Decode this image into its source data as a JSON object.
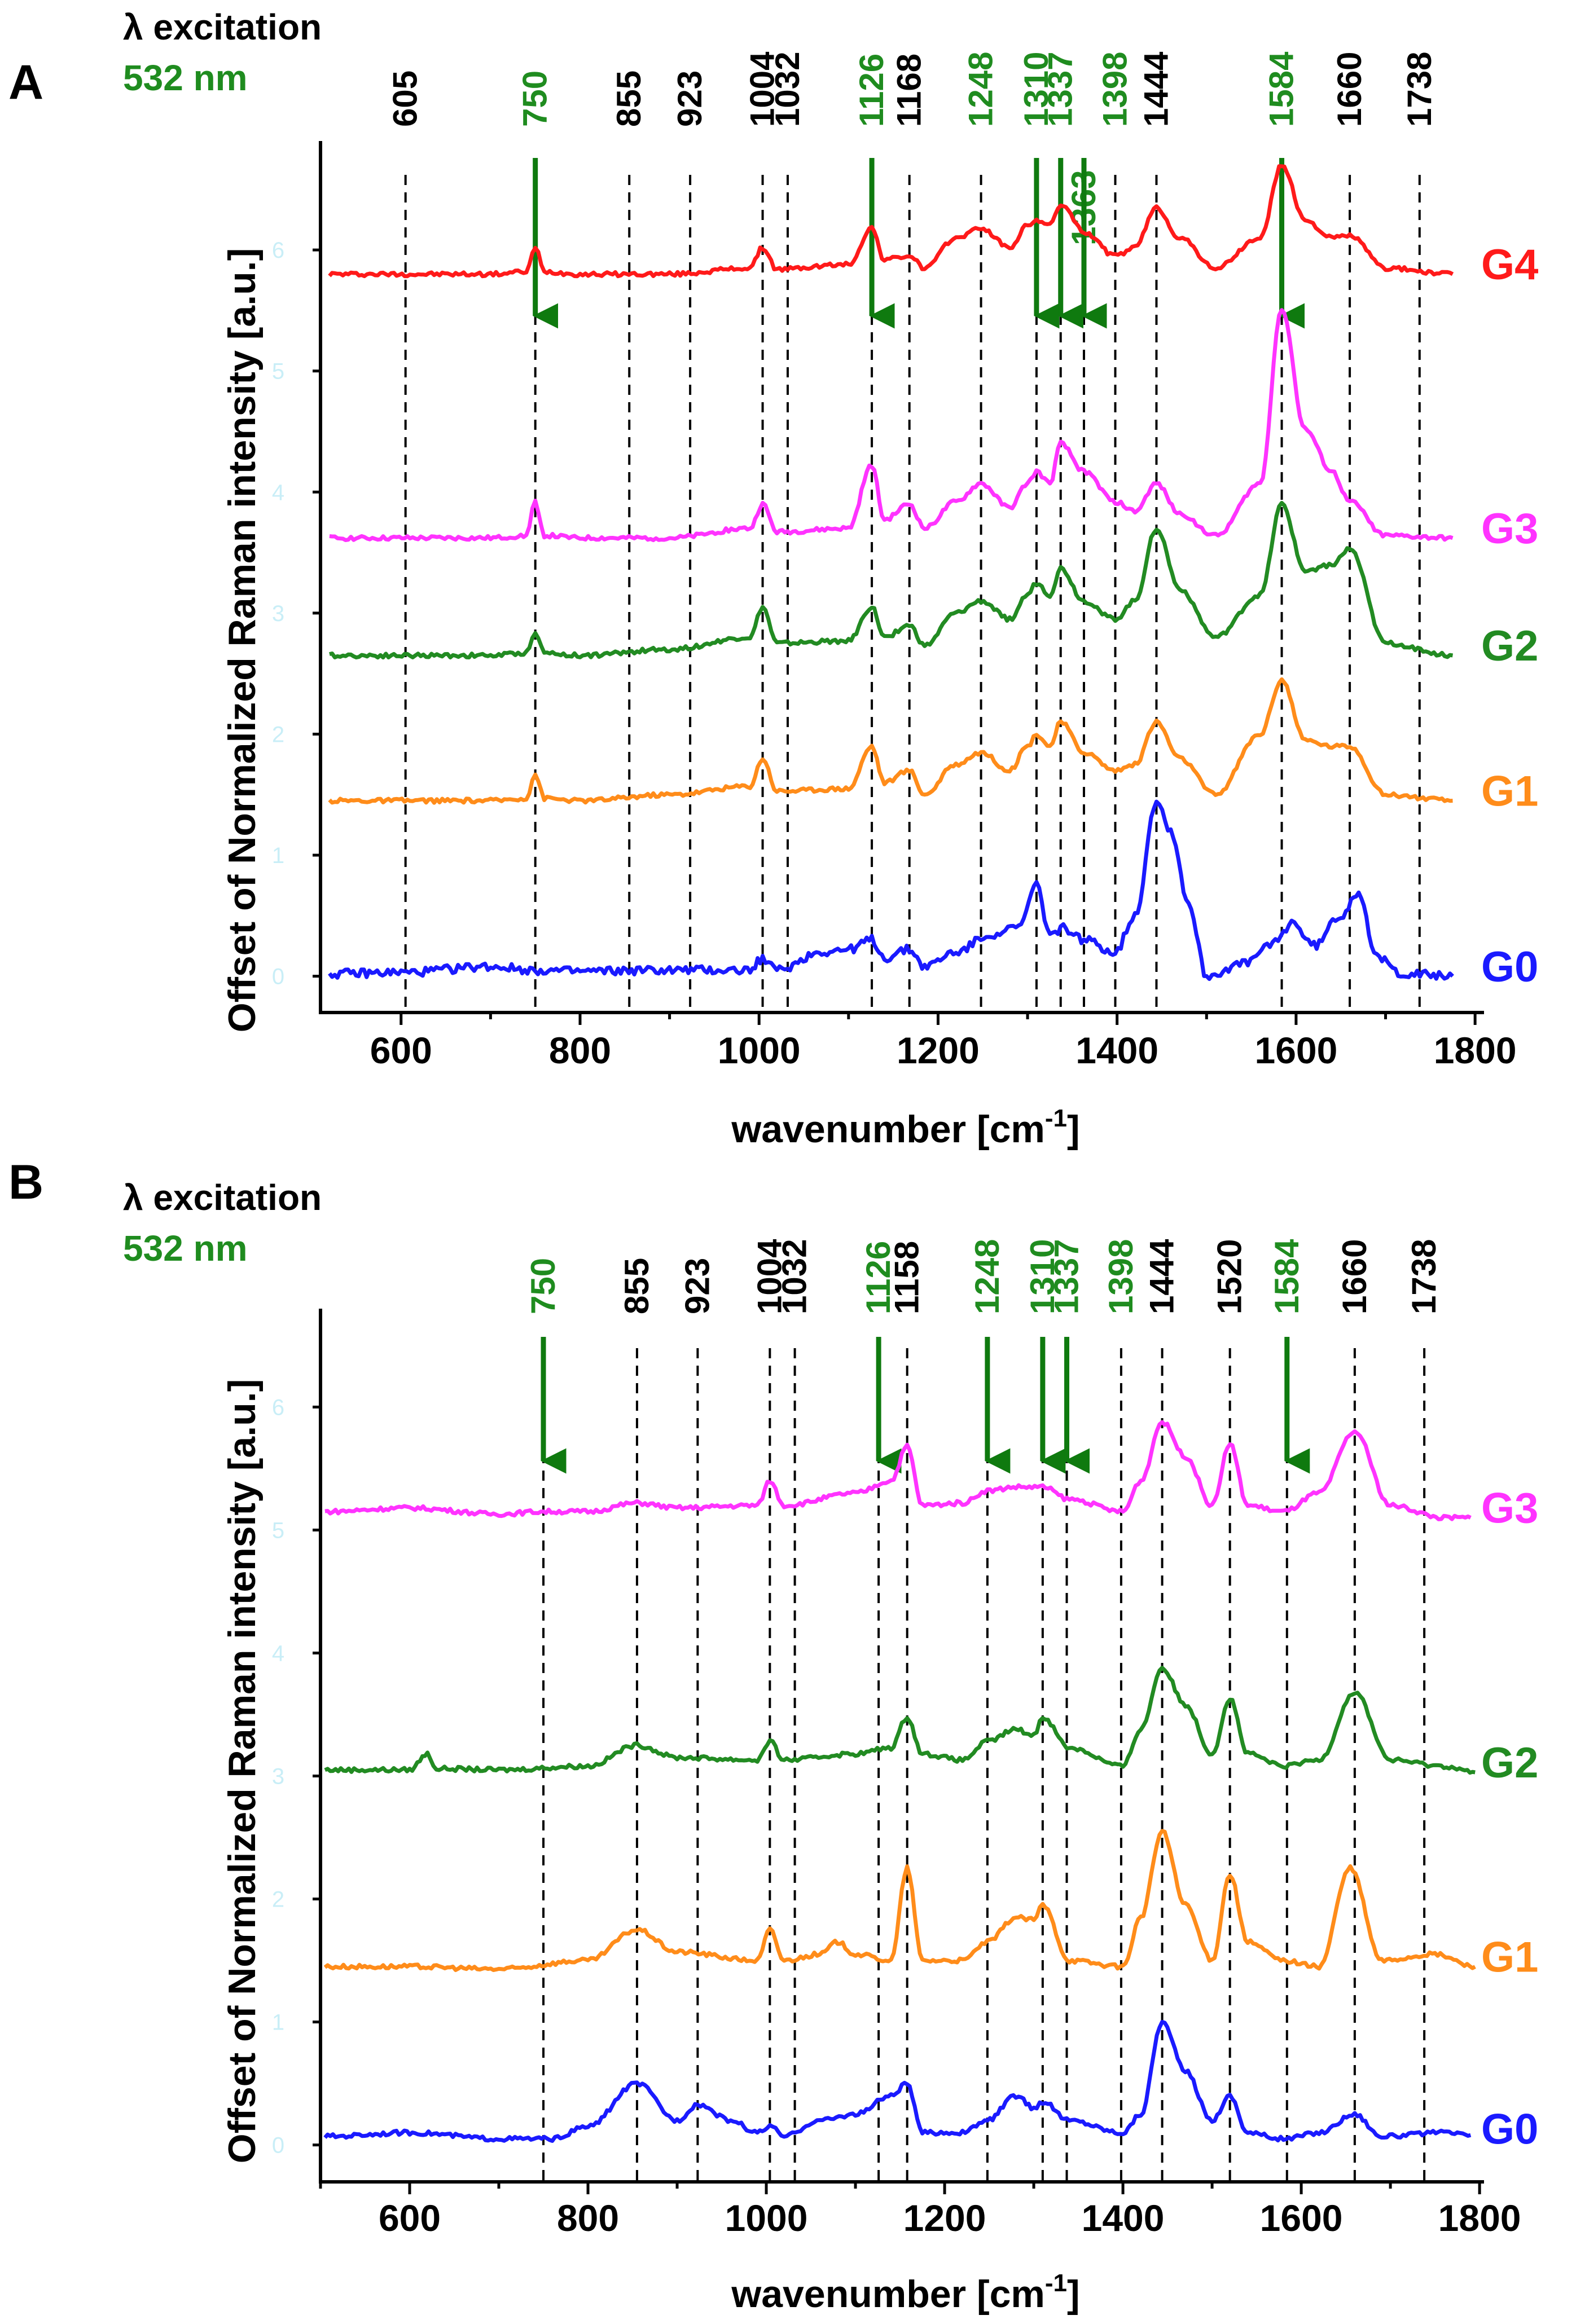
{
  "colors": {
    "G0": "#1a1aff",
    "G1": "#ff8c1a",
    "G2": "#228b22",
    "G3": "#ff33ff",
    "G4": "#ff1a1a",
    "arrow": "#0f7a0f",
    "highlight_label": "#1f8c1f",
    "faint_tick": "#c9eef7"
  },
  "chart_data": [
    {
      "panel": "A",
      "type": "line",
      "excitation_label": "λ excitation",
      "excitation_value": "532 nm",
      "xlabel": "wavenumber [cm",
      "xlabel_sup": "-1",
      "xlabel_end": "]",
      "ylabel": "Offset of Normalized Raman intensity [a.u.]",
      "xlim": [
        510,
        1810
      ],
      "ylim": [
        -0.3,
        6.9
      ],
      "xticks": [
        600,
        800,
        1000,
        1200,
        1400,
        1600,
        1800
      ],
      "yticks_faint": [
        0,
        1,
        2,
        3,
        4,
        5,
        6
      ],
      "peak_lines": [
        {
          "pos": 605,
          "label": "605",
          "highlight": false
        },
        {
          "pos": 750,
          "label": "750",
          "highlight": true
        },
        {
          "pos": 855,
          "label": "855",
          "highlight": false
        },
        {
          "pos": 923,
          "label": "923",
          "highlight": false
        },
        {
          "pos": 1004,
          "label": "1004",
          "highlight": false
        },
        {
          "pos": 1032,
          "label": "1032",
          "highlight": false
        },
        {
          "pos": 1126,
          "label": "1126",
          "highlight": true
        },
        {
          "pos": 1168,
          "label": "1168",
          "highlight": false
        },
        {
          "pos": 1248,
          "label": "1248",
          "highlight": true
        },
        {
          "pos": 1310,
          "label": "1310",
          "highlight": true
        },
        {
          "pos": 1337,
          "label": "1337",
          "highlight": true
        },
        {
          "pos": 1363,
          "label": "1363",
          "highlight": true,
          "label_low": true
        },
        {
          "pos": 1398,
          "label": "1398",
          "highlight": true
        },
        {
          "pos": 1444,
          "label": "1444",
          "highlight": false
        },
        {
          "pos": 1584,
          "label": "1584",
          "highlight": true
        },
        {
          "pos": 1660,
          "label": "1660",
          "highlight": false
        },
        {
          "pos": 1738,
          "label": "1738",
          "highlight": false
        }
      ],
      "arrows": [
        750,
        1126,
        1310,
        1337,
        1363,
        1584
      ],
      "series": [
        {
          "name": "G4",
          "offset": 5.8,
          "x": [
            520,
            700,
            740,
            750,
            760,
            800,
            900,
            990,
            1004,
            1020,
            1100,
            1126,
            1140,
            1168,
            1185,
            1220,
            1248,
            1280,
            1300,
            1310,
            1325,
            1337,
            1363,
            1398,
            1420,
            1444,
            1470,
            1510,
            1560,
            1584,
            1610,
            1640,
            1660,
            1700,
            1775
          ],
          "y": [
            0,
            0,
            0.02,
            0.22,
            0.02,
            0,
            0,
            0.05,
            0.22,
            0.04,
            0.08,
            0.38,
            0.12,
            0.15,
            0.05,
            0.3,
            0.38,
            0.22,
            0.4,
            0.45,
            0.4,
            0.58,
            0.35,
            0.15,
            0.22,
            0.55,
            0.3,
            0.05,
            0.3,
            0.9,
            0.45,
            0.3,
            0.32,
            0.05,
            0
          ]
        },
        {
          "name": "G3",
          "offset": 3.62,
          "x": [
            520,
            700,
            740,
            750,
            760,
            800,
            900,
            990,
            1004,
            1020,
            1100,
            1126,
            1140,
            1168,
            1185,
            1220,
            1248,
            1280,
            1300,
            1310,
            1325,
            1337,
            1363,
            1398,
            1420,
            1444,
            1470,
            1510,
            1560,
            1584,
            1610,
            1640,
            1660,
            1700,
            1775
          ],
          "y": [
            0,
            0,
            0.02,
            0.3,
            0.02,
            0,
            0,
            0.08,
            0.28,
            0.05,
            0.08,
            0.6,
            0.15,
            0.28,
            0.08,
            0.3,
            0.45,
            0.25,
            0.45,
            0.55,
            0.45,
            0.78,
            0.55,
            0.3,
            0.22,
            0.45,
            0.2,
            0.02,
            0.45,
            1.9,
            0.9,
            0.55,
            0.3,
            0.02,
            0
          ]
        },
        {
          "name": "G2",
          "offset": 2.65,
          "x": [
            520,
            700,
            740,
            750,
            760,
            800,
            900,
            990,
            1004,
            1020,
            1100,
            1126,
            1140,
            1168,
            1185,
            1220,
            1248,
            1280,
            1300,
            1310,
            1325,
            1337,
            1363,
            1398,
            1420,
            1444,
            1470,
            1510,
            1560,
            1584,
            1610,
            1640,
            1660,
            1700,
            1775
          ],
          "y": [
            0,
            0,
            0.02,
            0.2,
            0.02,
            0,
            0.05,
            0.15,
            0.4,
            0.1,
            0.12,
            0.4,
            0.15,
            0.25,
            0.08,
            0.35,
            0.45,
            0.3,
            0.5,
            0.6,
            0.5,
            0.72,
            0.45,
            0.3,
            0.45,
            1.05,
            0.55,
            0.15,
            0.5,
            1.25,
            0.7,
            0.75,
            0.88,
            0.1,
            0
          ]
        },
        {
          "name": "G1",
          "offset": 1.45,
          "x": [
            520,
            700,
            740,
            750,
            760,
            800,
            900,
            990,
            1004,
            1020,
            1100,
            1126,
            1140,
            1168,
            1185,
            1220,
            1248,
            1280,
            1300,
            1310,
            1325,
            1337,
            1363,
            1398,
            1420,
            1444,
            1470,
            1510,
            1560,
            1584,
            1610,
            1640,
            1660,
            1700,
            1775
          ],
          "y": [
            0,
            0,
            0.02,
            0.22,
            0.02,
            0,
            0.05,
            0.12,
            0.35,
            0.08,
            0.1,
            0.45,
            0.15,
            0.25,
            0.05,
            0.3,
            0.4,
            0.25,
            0.45,
            0.55,
            0.45,
            0.65,
            0.4,
            0.25,
            0.3,
            0.65,
            0.35,
            0.05,
            0.55,
            1.0,
            0.5,
            0.45,
            0.45,
            0.05,
            0
          ]
        },
        {
          "name": "G0",
          "offset": 0.0,
          "x": [
            520,
            600,
            700,
            750,
            800,
            900,
            990,
            1004,
            1020,
            1070,
            1100,
            1126,
            1140,
            1168,
            1185,
            1220,
            1260,
            1290,
            1310,
            1325,
            1340,
            1363,
            1398,
            1420,
            1444,
            1460,
            1480,
            1500,
            1540,
            1580,
            1595,
            1620,
            1650,
            1670,
            1690,
            1720,
            1775
          ],
          "y": [
            0.02,
            0.03,
            0.08,
            0.05,
            0.04,
            0.05,
            0.05,
            0.15,
            0.05,
            0.2,
            0.22,
            0.3,
            0.15,
            0.22,
            0.08,
            0.2,
            0.35,
            0.4,
            0.75,
            0.35,
            0.4,
            0.3,
            0.2,
            0.5,
            1.45,
            1.2,
            0.6,
            0.0,
            0.1,
            0.3,
            0.45,
            0.25,
            0.5,
            0.7,
            0.15,
            0.02,
            0.0
          ]
        }
      ]
    },
    {
      "panel": "B",
      "type": "line",
      "excitation_label": "λ excitation",
      "excitation_value": "532 nm",
      "xlabel": "wavenumber [cm",
      "xlabel_sup": "-1",
      "xlabel_end": "]",
      "ylabel": "Offset of Normalized Raman intensity [a.u.]",
      "xlim": [
        500,
        1805
      ],
      "ylim": [
        -0.3,
        6.8
      ],
      "xticks": [
        600,
        800,
        1000,
        1200,
        1400,
        1600,
        1800
      ],
      "yticks_faint": [
        0,
        1,
        2,
        3,
        4,
        5,
        6
      ],
      "peak_lines": [
        {
          "pos": 750,
          "label": "750",
          "highlight": true
        },
        {
          "pos": 855,
          "label": "855",
          "highlight": false
        },
        {
          "pos": 923,
          "label": "923",
          "highlight": false
        },
        {
          "pos": 1004,
          "label": "1004",
          "highlight": false
        },
        {
          "pos": 1032,
          "label": "1032",
          "highlight": false
        },
        {
          "pos": 1126,
          "label": "1126",
          "highlight": true
        },
        {
          "pos": 1158,
          "label": "1158",
          "highlight": false
        },
        {
          "pos": 1248,
          "label": "1248",
          "highlight": true
        },
        {
          "pos": 1310,
          "label": "1310",
          "highlight": true
        },
        {
          "pos": 1337,
          "label": "1337",
          "highlight": true
        },
        {
          "pos": 1398,
          "label": "1398",
          "highlight": true
        },
        {
          "pos": 1444,
          "label": "1444",
          "highlight": false
        },
        {
          "pos": 1520,
          "label": "1520",
          "highlight": false
        },
        {
          "pos": 1584,
          "label": "1584",
          "highlight": true
        },
        {
          "pos": 1660,
          "label": "1660",
          "highlight": false
        },
        {
          "pos": 1738,
          "label": "1738",
          "highlight": false
        }
      ],
      "arrows": [
        750,
        1126,
        1248,
        1310,
        1337,
        1584
      ],
      "series": [
        {
          "name": "G3",
          "offset": 5.1,
          "x": [
            505,
            600,
            700,
            750,
            800,
            855,
            900,
            990,
            1004,
            1020,
            1100,
            1140,
            1158,
            1175,
            1220,
            1248,
            1280,
            1310,
            1340,
            1400,
            1420,
            1444,
            1470,
            1500,
            1520,
            1540,
            1580,
            1620,
            1660,
            1700,
            1760,
            1790
          ],
          "y": [
            0.05,
            0.08,
            0.03,
            0.05,
            0.05,
            0.12,
            0.08,
            0.1,
            0.3,
            0.1,
            0.2,
            0.3,
            0.58,
            0.1,
            0.12,
            0.22,
            0.25,
            0.25,
            0.15,
            0.05,
            0.3,
            0.78,
            0.5,
            0.1,
            0.6,
            0.1,
            0.05,
            0.2,
            0.7,
            0.1,
            0.0,
            0.0
          ]
        },
        {
          "name": "G2",
          "offset": 3.03,
          "x": [
            505,
            600,
            620,
            630,
            700,
            800,
            855,
            900,
            990,
            1004,
            1020,
            1100,
            1140,
            1158,
            1175,
            1220,
            1248,
            1280,
            1300,
            1310,
            1340,
            1400,
            1420,
            1444,
            1470,
            1500,
            1520,
            1540,
            1580,
            1620,
            1660,
            1700,
            1760,
            1795
          ],
          "y": [
            0.02,
            0.02,
            0.15,
            0.03,
            0.02,
            0.05,
            0.22,
            0.12,
            0.1,
            0.25,
            0.1,
            0.15,
            0.2,
            0.45,
            0.15,
            0.1,
            0.25,
            0.35,
            0.3,
            0.45,
            0.2,
            0.05,
            0.35,
            0.85,
            0.55,
            0.15,
            0.6,
            0.15,
            0.05,
            0.1,
            0.65,
            0.1,
            0.05,
            0.0
          ]
        },
        {
          "name": "G1",
          "offset": 1.45,
          "x": [
            505,
            600,
            700,
            800,
            855,
            900,
            990,
            1004,
            1020,
            1060,
            1080,
            1100,
            1140,
            1158,
            1175,
            1220,
            1248,
            1280,
            1300,
            1310,
            1340,
            1400,
            1420,
            1444,
            1470,
            1500,
            1520,
            1540,
            1580,
            1620,
            1655,
            1690,
            1750,
            1795
          ],
          "y": [
            0.0,
            0.0,
            -0.02,
            0.05,
            0.3,
            0.12,
            0.05,
            0.3,
            0.05,
            0.1,
            0.2,
            0.1,
            0.05,
            0.8,
            0.05,
            0.05,
            0.2,
            0.4,
            0.38,
            0.5,
            0.05,
            0.0,
            0.4,
            1.1,
            0.5,
            0.05,
            0.75,
            0.2,
            0.05,
            0.0,
            0.8,
            0.05,
            0.1,
            0.0
          ]
        },
        {
          "name": "G0",
          "offset": 0.05,
          "x": [
            505,
            600,
            700,
            760,
            800,
            855,
            900,
            923,
            960,
            990,
            1004,
            1020,
            1060,
            1100,
            1140,
            1158,
            1175,
            1220,
            1248,
            1280,
            1300,
            1310,
            1340,
            1400,
            1420,
            1444,
            1470,
            1500,
            1520,
            1540,
            1580,
            1620,
            1660,
            1690,
            1760,
            1790
          ],
          "y": [
            0.02,
            0.05,
            0.0,
            0.0,
            0.1,
            0.45,
            0.15,
            0.28,
            0.15,
            0.05,
            0.1,
            0.02,
            0.15,
            0.2,
            0.35,
            0.45,
            0.05,
            0.05,
            0.15,
            0.35,
            0.25,
            0.3,
            0.15,
            0.05,
            0.2,
            0.95,
            0.55,
            0.15,
            0.35,
            0.05,
            0.0,
            0.05,
            0.2,
            0.02,
            0.05,
            0.03
          ]
        }
      ]
    }
  ]
}
